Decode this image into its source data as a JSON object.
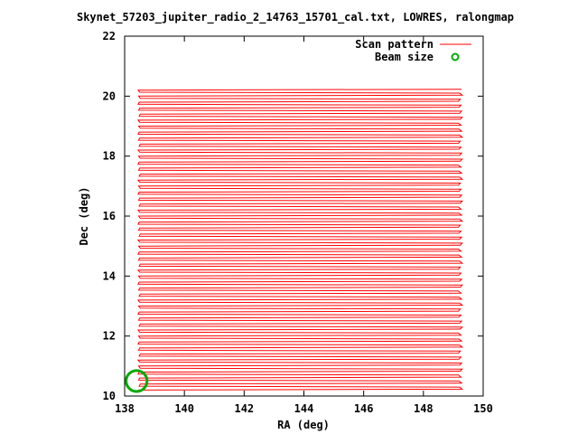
{
  "chart_data": {
    "type": "line",
    "title": "Skynet_57203_jupiter_radio_2_14763_15701_cal.txt, LOWRES, ralongmap",
    "xlabel": "RA (deg)",
    "ylabel": "Dec (deg)",
    "xlim": [
      138,
      150
    ],
    "ylim": [
      10,
      22
    ],
    "xticks": [
      138,
      140,
      142,
      144,
      146,
      148,
      150
    ],
    "yticks": [
      10,
      12,
      14,
      16,
      18,
      20,
      22
    ],
    "grid": false,
    "legend_position": "top-right",
    "series": [
      {
        "name": "Scan pattern",
        "color": "#ff0000",
        "style": "raster-scan-lines",
        "ra_start": 138.45,
        "ra_end": 149.3,
        "dec_start": 10.2,
        "dec_end": 20.2,
        "dec_step": 0.1
      },
      {
        "name": "Beam size",
        "color": "#00aa00",
        "style": "circle",
        "center": [
          138.4,
          10.5
        ],
        "diameter_deg": 0.7
      }
    ]
  }
}
